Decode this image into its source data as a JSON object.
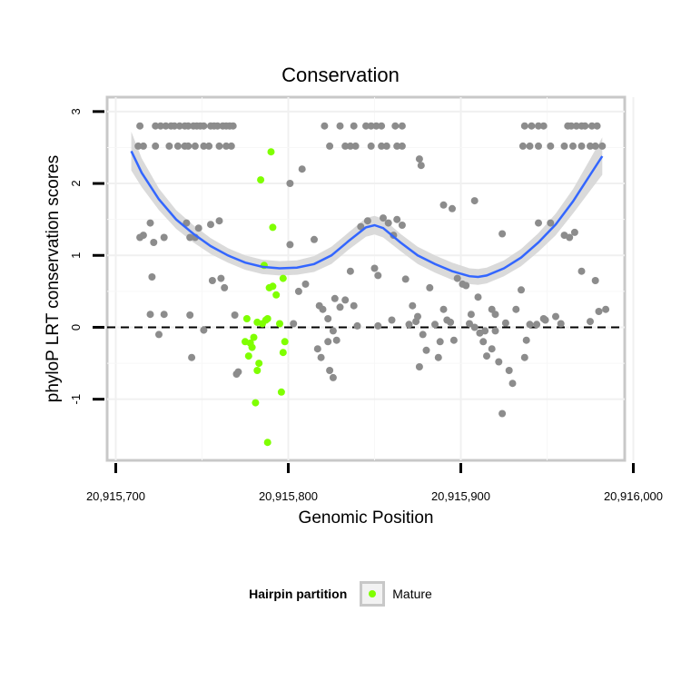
{
  "chart_data": {
    "type": "scatter",
    "title": "Conservation",
    "xlabel": "Genomic Position",
    "ylabel": "phyloP LRT conservation scores",
    "xlim": [
      20915695,
      20915995
    ],
    "ylim": [
      -1.85,
      3.2
    ],
    "x_ticks": [
      20915700,
      20915800,
      20915900,
      20916000
    ],
    "x_tick_labels": [
      "20,915,700",
      "20,915,800",
      "20,915,900",
      "20,916,000"
    ],
    "y_ticks": [
      -1,
      0,
      1,
      2,
      3
    ],
    "y_tick_labels": [
      "-1",
      "0",
      "1",
      "2",
      "3"
    ],
    "grid": true,
    "reference_line": {
      "y": 0,
      "style": "dashed"
    },
    "legend": {
      "title": "Hairpin partition",
      "placement": "bottom",
      "entries": [
        {
          "label": "Mature",
          "color": "#7fff00"
        }
      ]
    },
    "colors": {
      "background_points": "#8c8c8c",
      "mature_points": "#7fff00",
      "smooth_line": "#3366ff",
      "confidence_band": "#d6d6d6",
      "panel_border": "#c8c8c8"
    },
    "smooth": {
      "x": [
        20915709,
        20915715,
        20915725,
        20915735,
        20915745,
        20915755,
        20915765,
        20915775,
        20915785,
        20915795,
        20915805,
        20915815,
        20915825,
        20915835,
        20915845,
        20915850,
        20915855,
        20915865,
        20915875,
        20915885,
        20915895,
        20915905,
        20915910,
        20915915,
        20915925,
        20915935,
        20915945,
        20915955,
        20915965,
        20915975,
        20915982
      ],
      "y": [
        2.45,
        2.15,
        1.78,
        1.5,
        1.3,
        1.13,
        1.0,
        0.9,
        0.84,
        0.82,
        0.83,
        0.88,
        1.0,
        1.2,
        1.39,
        1.42,
        1.38,
        1.18,
        1.0,
        0.88,
        0.78,
        0.71,
        0.7,
        0.72,
        0.82,
        0.97,
        1.18,
        1.43,
        1.75,
        2.12,
        2.38
      ],
      "lower": [
        2.18,
        1.95,
        1.63,
        1.37,
        1.18,
        1.02,
        0.9,
        0.8,
        0.74,
        0.72,
        0.73,
        0.77,
        0.88,
        1.08,
        1.26,
        1.29,
        1.25,
        1.06,
        0.88,
        0.76,
        0.66,
        0.6,
        0.59,
        0.61,
        0.71,
        0.85,
        1.05,
        1.28,
        1.58,
        1.9,
        2.12
      ],
      "upper": [
        2.72,
        2.35,
        1.93,
        1.63,
        1.42,
        1.24,
        1.1,
        1.0,
        0.94,
        0.92,
        0.93,
        0.99,
        1.12,
        1.32,
        1.52,
        1.55,
        1.51,
        1.3,
        1.12,
        1.0,
        0.9,
        0.82,
        0.81,
        0.83,
        0.93,
        1.09,
        1.31,
        1.58,
        1.92,
        2.34,
        2.64
      ]
    },
    "series": [
      {
        "name": "Mature",
        "color": "#7fff00",
        "points": [
          [
            20915790,
            2.44
          ],
          [
            20915784,
            2.05
          ],
          [
            20915791,
            1.39
          ],
          [
            20915786,
            0.86
          ],
          [
            20915797,
            0.68
          ],
          [
            20915789,
            0.55
          ],
          [
            20915791,
            0.57
          ],
          [
            20915793,
            0.45
          ],
          [
            20915788,
            0.12
          ],
          [
            20915782,
            0.07
          ],
          [
            20915785,
            0.05
          ],
          [
            20915787,
            0.1
          ],
          [
            20915795,
            0.05
          ],
          [
            20915798,
            -0.2
          ],
          [
            20915776,
            0.12
          ],
          [
            20915775,
            -0.2
          ],
          [
            20915778,
            -0.22
          ],
          [
            20915780,
            -0.14
          ],
          [
            20915779,
            -0.28
          ],
          [
            20915777,
            -0.4
          ],
          [
            20915783,
            -0.5
          ],
          [
            20915782,
            -0.6
          ],
          [
            20915797,
            -0.35
          ],
          [
            20915796,
            -0.9
          ],
          [
            20915781,
            -1.05
          ],
          [
            20915788,
            -1.6
          ]
        ]
      },
      {
        "name": "",
        "color": "#8c8c8c",
        "points": [
          [
            20915714,
            2.8
          ],
          [
            20915723,
            2.8
          ],
          [
            20915726,
            2.8
          ],
          [
            20915729,
            2.8
          ],
          [
            20915732,
            2.8
          ],
          [
            20915734,
            2.8
          ],
          [
            20915737,
            2.8
          ],
          [
            20915740,
            2.8
          ],
          [
            20915742,
            2.8
          ],
          [
            20915745,
            2.8
          ],
          [
            20915747,
            2.8
          ],
          [
            20915749,
            2.8
          ],
          [
            20915751,
            2.8
          ],
          [
            20915755,
            2.8
          ],
          [
            20915757,
            2.8
          ],
          [
            20915759,
            2.8
          ],
          [
            20915762,
            2.8
          ],
          [
            20915764,
            2.8
          ],
          [
            20915766,
            2.8
          ],
          [
            20915768,
            2.8
          ],
          [
            20915713,
            2.52
          ],
          [
            20915716,
            2.52
          ],
          [
            20915723,
            2.52
          ],
          [
            20915731,
            2.52
          ],
          [
            20915736,
            2.52
          ],
          [
            20915740,
            2.52
          ],
          [
            20915742,
            2.52
          ],
          [
            20915746,
            2.52
          ],
          [
            20915751,
            2.52
          ],
          [
            20915754,
            2.52
          ],
          [
            20915760,
            2.52
          ],
          [
            20915764,
            2.52
          ],
          [
            20915767,
            2.52
          ],
          [
            20915821,
            2.8
          ],
          [
            20915830,
            2.8
          ],
          [
            20915838,
            2.8
          ],
          [
            20915845,
            2.8
          ],
          [
            20915848,
            2.8
          ],
          [
            20915851,
            2.8
          ],
          [
            20915854,
            2.8
          ],
          [
            20915862,
            2.8
          ],
          [
            20915866,
            2.8
          ],
          [
            20915824,
            2.52
          ],
          [
            20915833,
            2.52
          ],
          [
            20915836,
            2.52
          ],
          [
            20915839,
            2.52
          ],
          [
            20915848,
            2.52
          ],
          [
            20915854,
            2.52
          ],
          [
            20915857,
            2.52
          ],
          [
            20915863,
            2.52
          ],
          [
            20915866,
            2.52
          ],
          [
            20915937,
            2.8
          ],
          [
            20915941,
            2.8
          ],
          [
            20915945,
            2.8
          ],
          [
            20915948,
            2.8
          ],
          [
            20915962,
            2.8
          ],
          [
            20915964,
            2.8
          ],
          [
            20915967,
            2.8
          ],
          [
            20915970,
            2.8
          ],
          [
            20915972,
            2.8
          ],
          [
            20915976,
            2.8
          ],
          [
            20915979,
            2.8
          ],
          [
            20915936,
            2.52
          ],
          [
            20915940,
            2.52
          ],
          [
            20915945,
            2.52
          ],
          [
            20915952,
            2.52
          ],
          [
            20915960,
            2.52
          ],
          [
            20915965,
            2.52
          ],
          [
            20915970,
            2.52
          ],
          [
            20915975,
            2.52
          ],
          [
            20915978,
            2.52
          ],
          [
            20915982,
            2.52
          ],
          [
            20915801,
            2.0
          ],
          [
            20915808,
            2.2
          ],
          [
            20915876,
            2.34
          ],
          [
            20915877,
            2.25
          ],
          [
            20915890,
            1.7
          ],
          [
            20915895,
            1.65
          ],
          [
            20915908,
            1.76
          ],
          [
            20915924,
            1.3
          ],
          [
            20915714,
            1.25
          ],
          [
            20915716,
            1.28
          ],
          [
            20915720,
            1.45
          ],
          [
            20915722,
            1.18
          ],
          [
            20915728,
            1.25
          ],
          [
            20915741,
            1.45
          ],
          [
            20915743,
            1.25
          ],
          [
            20915746,
            1.25
          ],
          [
            20915748,
            1.38
          ],
          [
            20915755,
            1.43
          ],
          [
            20915760,
            1.48
          ],
          [
            20915744,
            -0.42
          ],
          [
            20915751,
            -0.04
          ],
          [
            20915756,
            0.65
          ],
          [
            20915761,
            0.68
          ],
          [
            20915763,
            0.55
          ],
          [
            20915769,
            0.17
          ],
          [
            20915770,
            -0.65
          ],
          [
            20915771,
            -0.62
          ],
          [
            20915721,
            0.7
          ],
          [
            20915720,
            0.18
          ],
          [
            20915725,
            -0.1
          ],
          [
            20915728,
            0.18
          ],
          [
            20915743,
            0.17
          ],
          [
            20915801,
            1.15
          ],
          [
            20915806,
            0.5
          ],
          [
            20915803,
            0.05
          ],
          [
            20915810,
            0.6
          ],
          [
            20915815,
            1.22
          ],
          [
            20915818,
            0.3
          ],
          [
            20915820,
            0.25
          ],
          [
            20915823,
            0.12
          ],
          [
            20915826,
            -0.05
          ],
          [
            20915828,
            -0.18
          ],
          [
            20915824,
            -0.6
          ],
          [
            20915826,
            -0.7
          ],
          [
            20915830,
            0.28
          ],
          [
            20915833,
            0.38
          ],
          [
            20915836,
            0.78
          ],
          [
            20915838,
            0.3
          ],
          [
            20915842,
            1.4
          ],
          [
            20915846,
            1.48
          ],
          [
            20915850,
            0.82
          ],
          [
            20915852,
            0.72
          ],
          [
            20915855,
            1.52
          ],
          [
            20915858,
            1.45
          ],
          [
            20915861,
            1.28
          ],
          [
            20915863,
            1.5
          ],
          [
            20915868,
            0.67
          ],
          [
            20915870,
            0.04
          ],
          [
            20915874,
            0.08
          ],
          [
            20915875,
            0.15
          ],
          [
            20915878,
            -0.1
          ],
          [
            20915880,
            -0.32
          ],
          [
            20915882,
            0.55
          ],
          [
            20915885,
            0.04
          ],
          [
            20915887,
            -0.42
          ],
          [
            20915890,
            0.25
          ],
          [
            20915892,
            0.1
          ],
          [
            20915894,
            0.07
          ],
          [
            20915896,
            -0.18
          ],
          [
            20915898,
            0.68
          ],
          [
            20915901,
            0.6
          ],
          [
            20915903,
            0.58
          ],
          [
            20915905,
            0.05
          ],
          [
            20915908,
            0.0
          ],
          [
            20915910,
            0.42
          ],
          [
            20915913,
            -0.2
          ],
          [
            20915915,
            -0.4
          ],
          [
            20915918,
            0.25
          ],
          [
            20915920,
            0.18
          ],
          [
            20915922,
            -0.48
          ],
          [
            20915924,
            -1.2
          ],
          [
            20915926,
            0.06
          ],
          [
            20915928,
            -0.6
          ],
          [
            20915930,
            -0.78
          ],
          [
            20915932,
            0.25
          ],
          [
            20915935,
            0.52
          ],
          [
            20915937,
            -0.42
          ],
          [
            20915940,
            0.04
          ],
          [
            20915945,
            1.45
          ],
          [
            20915948,
            0.12
          ],
          [
            20915952,
            1.45
          ],
          [
            20915955,
            0.15
          ],
          [
            20915960,
            1.28
          ],
          [
            20915963,
            1.25
          ],
          [
            20915966,
            1.32
          ],
          [
            20915970,
            0.78
          ],
          [
            20915975,
            0.08
          ],
          [
            20915978,
            0.65
          ],
          [
            20915980,
            0.22
          ],
          [
            20915984,
            0.25
          ],
          [
            20915817,
            -0.3
          ],
          [
            20915819,
            -0.42
          ],
          [
            20915823,
            -0.2
          ],
          [
            20915827,
            0.4
          ],
          [
            20915840,
            0.02
          ],
          [
            20915852,
            0.02
          ],
          [
            20915860,
            0.1
          ],
          [
            20915866,
            1.42
          ],
          [
            20915872,
            0.3
          ],
          [
            20915876,
            -0.55
          ],
          [
            20915888,
            -0.2
          ],
          [
            20915906,
            0.18
          ],
          [
            20915911,
            -0.08
          ],
          [
            20915914,
            -0.05
          ],
          [
            20915918,
            -0.3
          ],
          [
            20915920,
            -0.05
          ],
          [
            20915938,
            -0.18
          ],
          [
            20915944,
            0.04
          ],
          [
            20915949,
            0.1
          ],
          [
            20915958,
            0.05
          ]
        ]
      }
    ]
  }
}
